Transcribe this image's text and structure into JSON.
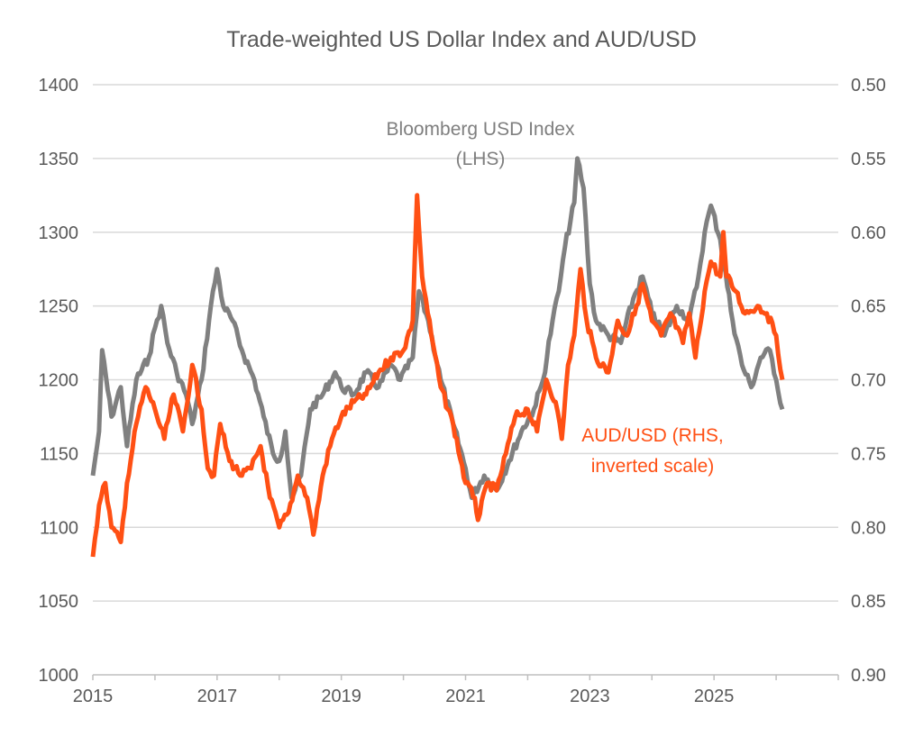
{
  "chart_data": {
    "type": "line",
    "title": "Trade-weighted US Dollar Index and AUD/USD",
    "xlabel": "",
    "ylabel": "",
    "x_ticks": [
      "2015",
      "2017",
      "2019",
      "2021",
      "2023",
      "2025"
    ],
    "x_tick_values": [
      2015,
      2017,
      2019,
      2021,
      2023,
      2025
    ],
    "xlim": [
      2015,
      2027
    ],
    "y_left": {
      "ylim": [
        1000,
        1400
      ],
      "ticks": [
        "1000",
        "1050",
        "1100",
        "1150",
        "1200",
        "1250",
        "1300",
        "1350",
        "1400"
      ],
      "tick_values": [
        1000,
        1050,
        1100,
        1150,
        1200,
        1250,
        1300,
        1350,
        1400
      ]
    },
    "y_right": {
      "ylim": [
        0.9,
        0.5
      ],
      "inverted": true,
      "ticks": [
        "0.90",
        "0.85",
        "0.80",
        "0.75",
        "0.70",
        "0.65",
        "0.60",
        "0.55",
        "0.50"
      ],
      "tick_values": [
        0.9,
        0.85,
        0.8,
        0.75,
        0.7,
        0.65,
        0.6,
        0.55,
        0.5
      ]
    },
    "grid": true,
    "series": [
      {
        "name": "Bloomberg USD Index (LHS)",
        "label_lines": [
          "Bloomberg USD Index",
          "(LHS)"
        ],
        "axis": "left",
        "color": "#808080",
        "x": [
          2015.0,
          2015.1,
          2015.15,
          2015.3,
          2015.45,
          2015.55,
          2015.7,
          2015.9,
          2016.0,
          2016.1,
          2016.2,
          2016.35,
          2016.5,
          2016.6,
          2016.75,
          2016.9,
          2017.0,
          2017.1,
          2017.25,
          2017.4,
          2017.6,
          2017.75,
          2017.9,
          2018.0,
          2018.1,
          2018.2,
          2018.35,
          2018.5,
          2018.7,
          2018.9,
          2019.0,
          2019.2,
          2019.4,
          2019.6,
          2019.8,
          2019.95,
          2020.15,
          2020.25,
          2020.4,
          2020.6,
          2020.8,
          2021.0,
          2021.1,
          2021.3,
          2021.5,
          2021.7,
          2021.9,
          2022.1,
          2022.25,
          2022.4,
          2022.5,
          2022.6,
          2022.75,
          2022.8,
          2022.9,
          2023.0,
          2023.1,
          2023.3,
          2023.5,
          2023.7,
          2023.85,
          2024.0,
          2024.2,
          2024.4,
          2024.6,
          2024.75,
          2024.85,
          2024.95,
          2025.1,
          2025.3,
          2025.45,
          2025.6,
          2025.75,
          2025.9,
          2026.0,
          2026.1
        ],
        "y": [
          1135,
          1165,
          1220,
          1175,
          1195,
          1155,
          1200,
          1215,
          1235,
          1250,
          1225,
          1205,
          1190,
          1170,
          1200,
          1250,
          1275,
          1250,
          1240,
          1220,
          1200,
          1175,
          1150,
          1145,
          1165,
          1120,
          1135,
          1180,
          1190,
          1205,
          1195,
          1190,
          1205,
          1195,
          1210,
          1200,
          1215,
          1260,
          1240,
          1200,
          1170,
          1140,
          1120,
          1135,
          1125,
          1145,
          1165,
          1180,
          1200,
          1240,
          1260,
          1290,
          1320,
          1350,
          1330,
          1265,
          1240,
          1230,
          1225,
          1255,
          1270,
          1245,
          1230,
          1250,
          1240,
          1270,
          1300,
          1318,
          1295,
          1240,
          1210,
          1195,
          1215,
          1220,
          1200,
          1180
        ]
      },
      {
        "name": "AUD/USD (RHS, inverted scale)",
        "label_lines": [
          "AUD/USD (RHS,",
          "inverted scale)"
        ],
        "axis": "right",
        "color": "#ff5014",
        "x": [
          2015.0,
          2015.1,
          2015.2,
          2015.3,
          2015.45,
          2015.55,
          2015.7,
          2015.85,
          2016.0,
          2016.15,
          2016.3,
          2016.45,
          2016.6,
          2016.75,
          2016.85,
          2016.95,
          2017.05,
          2017.2,
          2017.4,
          2017.55,
          2017.7,
          2017.85,
          2018.0,
          2018.15,
          2018.3,
          2018.45,
          2018.55,
          2018.7,
          2018.85,
          2019.0,
          2019.2,
          2019.4,
          2019.6,
          2019.8,
          2020.0,
          2020.15,
          2020.22,
          2020.3,
          2020.45,
          2020.6,
          2020.8,
          2021.0,
          2021.15,
          2021.2,
          2021.35,
          2021.5,
          2021.65,
          2021.8,
          2022.0,
          2022.15,
          2022.3,
          2022.45,
          2022.55,
          2022.65,
          2022.75,
          2022.85,
          2022.95,
          2023.1,
          2023.3,
          2023.45,
          2023.6,
          2023.75,
          2023.85,
          2024.0,
          2024.15,
          2024.3,
          2024.5,
          2024.6,
          2024.7,
          2024.85,
          2024.95,
          2025.1,
          2025.15,
          2025.2,
          2025.35,
          2025.5,
          2025.7,
          2025.85,
          2026.0,
          2026.1
        ],
        "y": [
          0.82,
          0.785,
          0.77,
          0.8,
          0.81,
          0.77,
          0.73,
          0.705,
          0.72,
          0.74,
          0.71,
          0.735,
          0.69,
          0.72,
          0.76,
          0.765,
          0.73,
          0.755,
          0.765,
          0.76,
          0.745,
          0.78,
          0.8,
          0.79,
          0.765,
          0.78,
          0.805,
          0.765,
          0.74,
          0.725,
          0.715,
          0.71,
          0.695,
          0.685,
          0.68,
          0.66,
          0.575,
          0.63,
          0.67,
          0.705,
          0.73,
          0.77,
          0.78,
          0.795,
          0.77,
          0.775,
          0.75,
          0.725,
          0.72,
          0.735,
          0.7,
          0.715,
          0.74,
          0.69,
          0.67,
          0.625,
          0.66,
          0.685,
          0.695,
          0.66,
          0.67,
          0.65,
          0.635,
          0.66,
          0.67,
          0.655,
          0.675,
          0.655,
          0.685,
          0.64,
          0.62,
          0.63,
          0.6,
          0.63,
          0.64,
          0.655,
          0.65,
          0.655,
          0.67,
          0.7
        ]
      }
    ]
  }
}
